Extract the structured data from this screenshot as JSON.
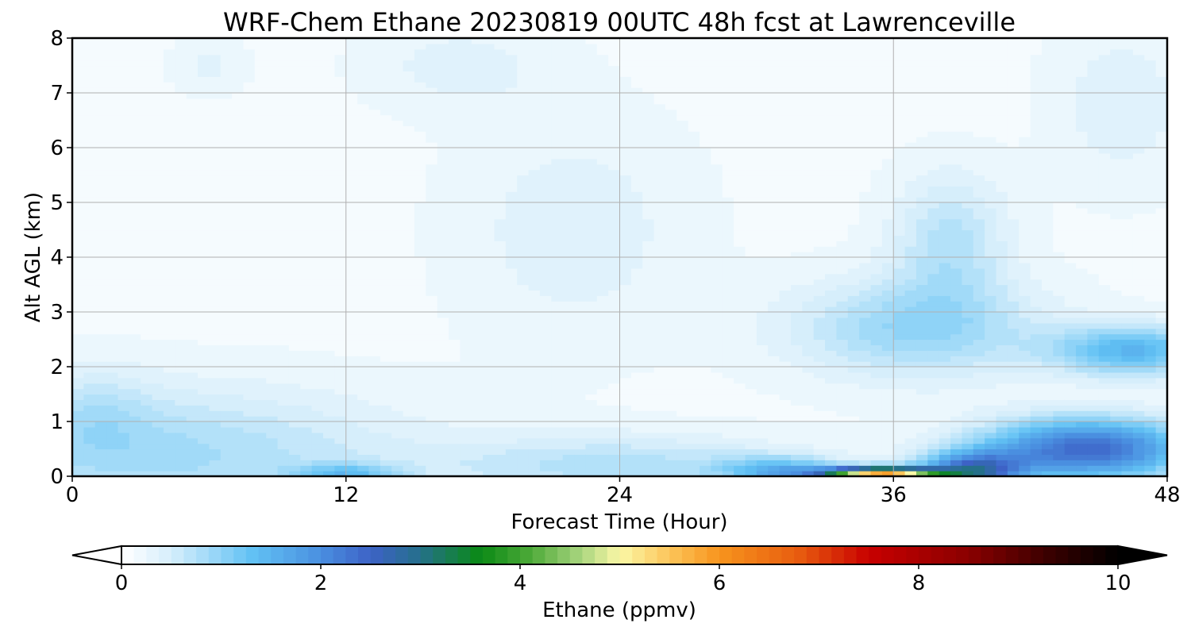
{
  "chart_data": {
    "type": "heatmap",
    "title": "WRF-Chem Ethane  20230819 00UTC 48h fcst at Lawrenceville",
    "xlabel": "Forecast Time (Hour)",
    "ylabel": "Alt AGL (km)",
    "xlim": [
      0,
      48
    ],
    "ylim": [
      0,
      8
    ],
    "xticks": [
      "0",
      "12",
      "24",
      "36",
      "48"
    ],
    "yticks": [
      "0",
      "1",
      "2",
      "3",
      "4",
      "5",
      "6",
      "7",
      "8"
    ],
    "grid": true,
    "colorbar": {
      "label": "Ethane  (ppmv)",
      "range": [
        0,
        10
      ],
      "ticks": [
        "0",
        "2",
        "4",
        "6",
        "8",
        "10"
      ],
      "extend": "both",
      "stops": [
        {
          "v": 0.0,
          "c": "#ffffff"
        },
        {
          "v": 0.5,
          "c": "#d6eefb"
        },
        {
          "v": 1.0,
          "c": "#8fd3f7"
        },
        {
          "v": 1.3,
          "c": "#62c2f4"
        },
        {
          "v": 2.0,
          "c": "#4a8fe0"
        },
        {
          "v": 2.5,
          "c": "#3d62c6"
        },
        {
          "v": 3.0,
          "c": "#25708a"
        },
        {
          "v": 3.6,
          "c": "#0a8a15"
        },
        {
          "v": 4.1,
          "c": "#4ca938"
        },
        {
          "v": 4.6,
          "c": "#a7d47d"
        },
        {
          "v": 5.0,
          "c": "#fbf8a6"
        },
        {
          "v": 5.5,
          "c": "#fcc55a"
        },
        {
          "v": 6.0,
          "c": "#f7941d"
        },
        {
          "v": 6.8,
          "c": "#e85c0f"
        },
        {
          "v": 7.5,
          "c": "#c80000"
        },
        {
          "v": 8.5,
          "c": "#8a0000"
        },
        {
          "v": 9.3,
          "c": "#3a0000"
        },
        {
          "v": 10.0,
          "c": "#000000"
        }
      ]
    },
    "features": [
      {
        "t": 35.5,
        "z": 0.05,
        "st": 2.5,
        "sz": 0.12,
        "a": 5.5
      },
      {
        "t": 39.5,
        "z": 0.1,
        "st": 2.2,
        "sz": 0.35,
        "a": 2.2
      },
      {
        "t": 44.5,
        "z": 0.5,
        "st": 4.5,
        "sz": 0.55,
        "a": 2.3
      },
      {
        "t": 31.0,
        "z": 0.1,
        "st": 2.5,
        "sz": 0.25,
        "a": 1.2
      },
      {
        "t": 46.5,
        "z": 2.3,
        "st": 3.5,
        "sz": 0.45,
        "a": 1.3
      },
      {
        "t": 37.0,
        "z": 2.7,
        "st": 5.5,
        "sz": 0.9,
        "a": 0.8
      },
      {
        "t": 38.5,
        "z": 4.3,
        "st": 2.5,
        "sz": 1.2,
        "a": 0.6
      },
      {
        "t": 12.0,
        "z": 0.05,
        "st": 2.2,
        "sz": 0.18,
        "a": 0.9
      },
      {
        "t": 24.0,
        "z": 0.2,
        "st": 8.0,
        "sz": 0.55,
        "a": 0.6
      },
      {
        "t": 4.0,
        "z": 0.4,
        "st": 10.0,
        "sz": 1.2,
        "a": 0.7
      },
      {
        "t": 1.0,
        "z": 1.2,
        "st": 2.5,
        "sz": 0.8,
        "a": 0.3
      },
      {
        "t": 22.0,
        "z": 4.5,
        "st": 5.0,
        "sz": 2.0,
        "a": 0.25
      },
      {
        "t": 17.0,
        "z": 7.5,
        "st": 4.0,
        "sz": 0.8,
        "a": 0.22
      },
      {
        "t": 6.0,
        "z": 7.5,
        "st": 1.5,
        "sz": 0.5,
        "a": 0.2
      },
      {
        "t": 46.0,
        "z": 6.8,
        "st": 3.0,
        "sz": 1.5,
        "a": 0.25
      }
    ]
  }
}
